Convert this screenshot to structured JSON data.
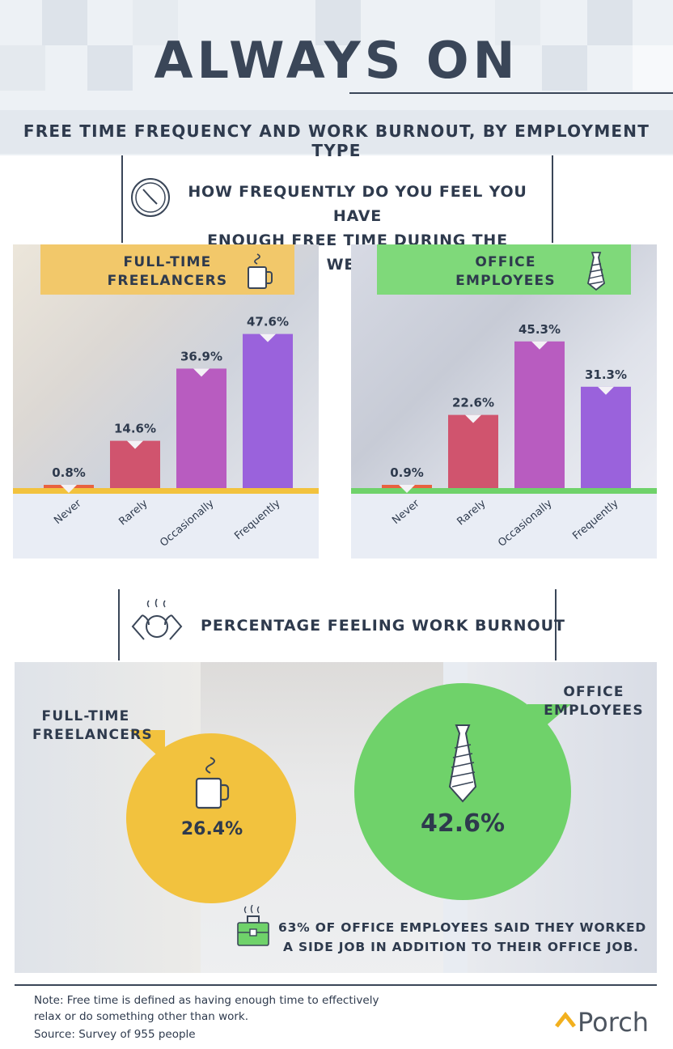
{
  "header": {
    "title": "ALWAYS ON",
    "subtitle": "FREE TIME FREQUENCY AND WORK BURNOUT, BY EMPLOYMENT TYPE"
  },
  "question": {
    "line1": "HOW FREQUENTLY DO YOU FEEL YOU HAVE",
    "line2": "ENOUGH FREE TIME DURING THE WEEK?",
    "icon": "clock-icon"
  },
  "chart_data": [
    {
      "type": "bar",
      "label_line1": "FULL-TIME",
      "label_line2": "FREELANCERS",
      "icon": "coffee-mug-icon",
      "categories": [
        "Never",
        "Rarely",
        "Occasionally",
        "Frequently"
      ],
      "values": [
        0.8,
        14.6,
        36.9,
        47.6
      ],
      "value_labels": [
        "0.8%",
        "14.6%",
        "36.9%",
        "47.6%"
      ],
      "ylim": [
        0,
        50
      ],
      "colors": [
        "#e8623f",
        "#d0546e",
        "#b85cc0",
        "#9a62dc"
      ],
      "accent": "#f2c23e"
    },
    {
      "type": "bar",
      "label_line1": "OFFICE",
      "label_line2": "EMPLOYEES",
      "icon": "necktie-icon",
      "categories": [
        "Never",
        "Rarely",
        "Occasionally",
        "Frequently"
      ],
      "values": [
        0.9,
        22.6,
        45.3,
        31.3
      ],
      "value_labels": [
        "0.9%",
        "22.6%",
        "45.3%",
        "31.3%"
      ],
      "ylim": [
        0,
        50
      ],
      "colors": [
        "#e8623f",
        "#d0546e",
        "#b85cc0",
        "#9a62dc"
      ],
      "accent": "#6fd26a"
    }
  ],
  "burnout": {
    "title": "PERCENTAGE FEELING WORK BURNOUT",
    "icon": "stressed-person-icon",
    "freelancers": {
      "line1": "FULL-TIME",
      "line2": "FREELANCERS",
      "value": "26.4%",
      "color": "#f2c23e"
    },
    "office": {
      "line1": "OFFICE",
      "line2": "EMPLOYEES",
      "value": "42.6%",
      "color": "#6fd26a"
    }
  },
  "callout": {
    "icon": "briefcase-icon",
    "line1": "63% OF OFFICE EMPLOYEES SAID THEY WORKED",
    "line2": "A SIDE JOB IN ADDITION TO THEIR OFFICE JOB."
  },
  "footer": {
    "note_line1": "Note: Free time is defined as having enough time to effectively",
    "note_line2": "relax or do something other than work.",
    "source": "Source: Survey of 955 people",
    "brand": "Porch"
  }
}
